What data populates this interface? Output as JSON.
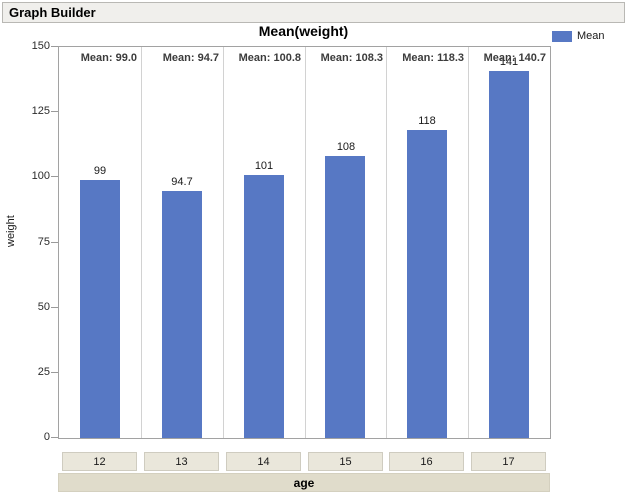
{
  "window": {
    "title": "Graph Builder"
  },
  "chart_data": {
    "type": "bar",
    "title": "Mean(weight)",
    "xlabel": "age",
    "ylabel": "weight",
    "categories": [
      "12",
      "13",
      "14",
      "15",
      "16",
      "17"
    ],
    "values": [
      99.0,
      94.7,
      100.8,
      108.3,
      118.3,
      140.7
    ],
    "bar_labels": [
      "99",
      "94.7",
      "101",
      "108",
      "118",
      "141"
    ],
    "panel_captions": [
      "Mean: 99.0",
      "Mean: 94.7",
      "Mean: 100.8",
      "Mean: 108.3",
      "Mean: 118.3",
      "Mean: 140.7"
    ],
    "ylim": [
      0,
      150
    ],
    "yticks": [
      0,
      25,
      50,
      75,
      100,
      125,
      150
    ],
    "grid": false,
    "bar_color": "#5778c4",
    "legend": {
      "position": "top-right",
      "entries": [
        {
          "label": "Mean",
          "color": "#5778c4"
        }
      ]
    }
  }
}
